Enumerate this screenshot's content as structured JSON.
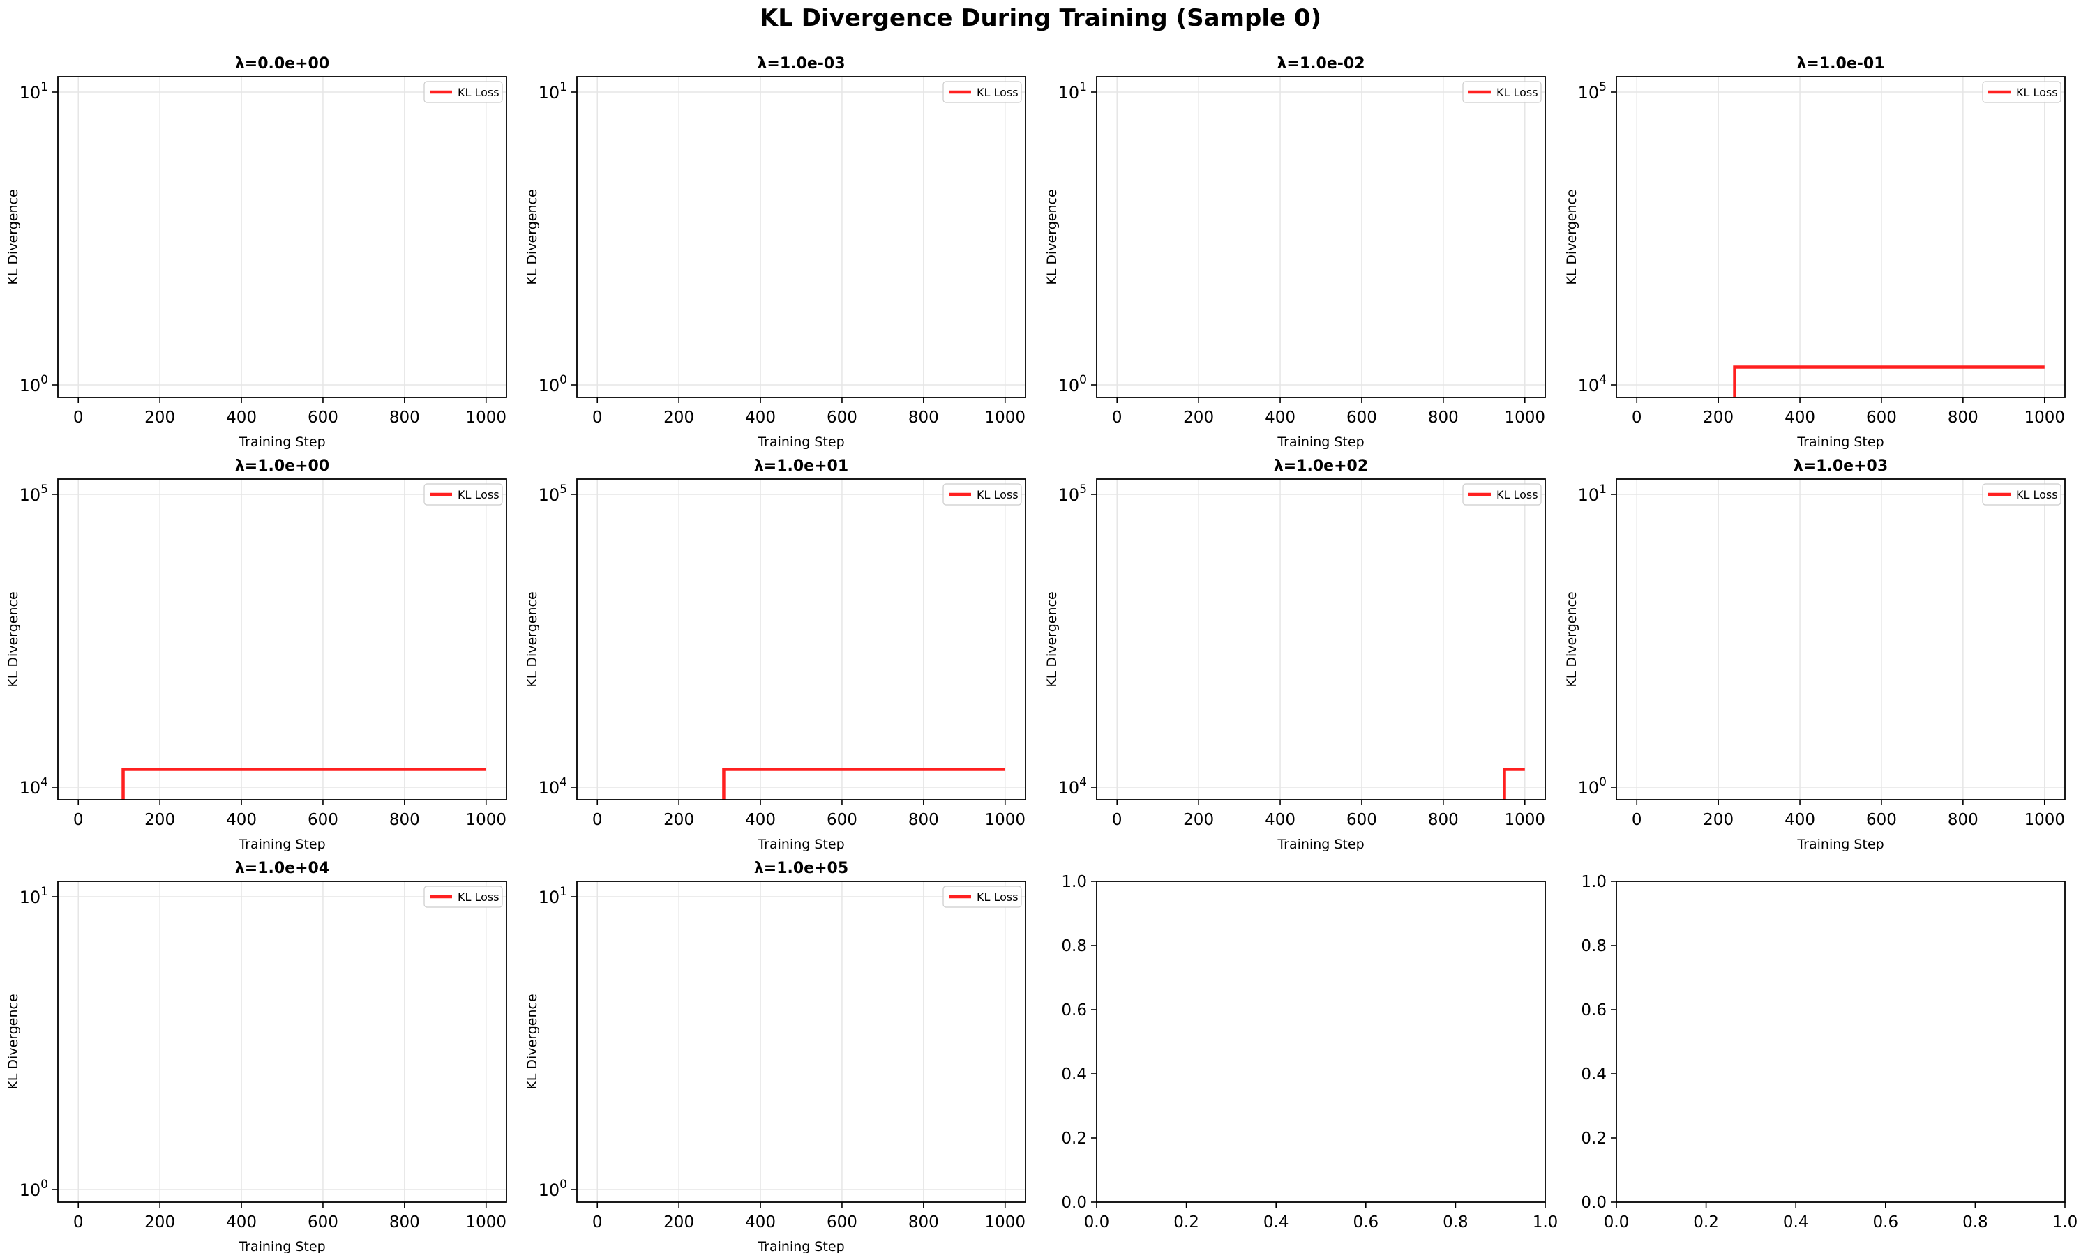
{
  "figure": {
    "title": "KL Divergence During Training (Sample 0)"
  },
  "colors": {
    "line": "#ff2020",
    "grid": "#e6e6e6",
    "axes": "#000000"
  },
  "chart_data": [
    {
      "type": "line",
      "title": "λ=0.0e+00",
      "xlabel": "Training Step",
      "ylabel": "KL Divergence",
      "x_ticks": [
        "0",
        "200",
        "400",
        "600",
        "800",
        "1000"
      ],
      "y_scale": "log",
      "y_ticks": [
        {
          "base": "10",
          "exp": "1"
        },
        {
          "base": "10",
          "exp": "0"
        }
      ],
      "xlim": [
        -50,
        1050
      ],
      "legend": {
        "label": "KL Loss",
        "position": "top-right"
      },
      "grid": true,
      "series": [
        {
          "name": "KL Loss",
          "x": [],
          "y": []
        }
      ]
    },
    {
      "type": "line",
      "title": "λ=1.0e-03",
      "xlabel": "Training Step",
      "ylabel": "KL Divergence",
      "x_ticks": [
        "0",
        "200",
        "400",
        "600",
        "800",
        "1000"
      ],
      "y_scale": "log",
      "y_ticks": [
        {
          "base": "10",
          "exp": "1"
        },
        {
          "base": "10",
          "exp": "0"
        }
      ],
      "xlim": [
        -50,
        1050
      ],
      "legend": {
        "label": "KL Loss",
        "position": "top-right"
      },
      "grid": true,
      "series": [
        {
          "name": "KL Loss",
          "x": [],
          "y": []
        }
      ]
    },
    {
      "type": "line",
      "title": "λ=1.0e-02",
      "xlabel": "Training Step",
      "ylabel": "KL Divergence",
      "x_ticks": [
        "0",
        "200",
        "400",
        "600",
        "800",
        "1000"
      ],
      "y_scale": "log",
      "y_ticks": [
        {
          "base": "10",
          "exp": "1"
        },
        {
          "base": "10",
          "exp": "0"
        }
      ],
      "xlim": [
        -50,
        1050
      ],
      "legend": {
        "label": "KL Loss",
        "position": "top-right"
      },
      "grid": true,
      "series": [
        {
          "name": "KL Loss",
          "x": [],
          "y": []
        }
      ]
    },
    {
      "type": "line",
      "title": "λ=1.0e-01",
      "xlabel": "Training Step",
      "ylabel": "KL Divergence",
      "x_ticks": [
        "0",
        "200",
        "400",
        "600",
        "800",
        "1000"
      ],
      "y_scale": "log",
      "y_ticks": [
        {
          "base": "10",
          "exp": "5"
        },
        {
          "base": "10",
          "exp": "4"
        }
      ],
      "xlim": [
        -50,
        1050
      ],
      "legend": {
        "label": "KL Loss",
        "position": "top-right"
      },
      "grid": true,
      "series": [
        {
          "name": "KL Loss",
          "x": [
            240,
            240,
            1000
          ],
          "y": [
            8000,
            11500,
            11500
          ]
        }
      ]
    },
    {
      "type": "line",
      "title": "λ=1.0e+00",
      "xlabel": "Training Step",
      "ylabel": "KL Divergence",
      "x_ticks": [
        "0",
        "200",
        "400",
        "600",
        "800",
        "1000"
      ],
      "y_scale": "log",
      "y_ticks": [
        {
          "base": "10",
          "exp": "5"
        },
        {
          "base": "10",
          "exp": "4"
        }
      ],
      "xlim": [
        -50,
        1050
      ],
      "legend": {
        "label": "KL Loss",
        "position": "top-right"
      },
      "grid": true,
      "series": [
        {
          "name": "KL Loss",
          "x": [
            110,
            110,
            1000
          ],
          "y": [
            8000,
            11500,
            11500
          ]
        }
      ]
    },
    {
      "type": "line",
      "title": "λ=1.0e+01",
      "xlabel": "Training Step",
      "ylabel": "KL Divergence",
      "x_ticks": [
        "0",
        "200",
        "400",
        "600",
        "800",
        "1000"
      ],
      "y_scale": "log",
      "y_ticks": [
        {
          "base": "10",
          "exp": "5"
        },
        {
          "base": "10",
          "exp": "4"
        }
      ],
      "xlim": [
        -50,
        1050
      ],
      "legend": {
        "label": "KL Loss",
        "position": "top-right"
      },
      "grid": true,
      "series": [
        {
          "name": "KL Loss",
          "x": [
            310,
            310,
            1000
          ],
          "y": [
            8000,
            11500,
            11500
          ]
        }
      ]
    },
    {
      "type": "line",
      "title": "λ=1.0e+02",
      "xlabel": "Training Step",
      "ylabel": "KL Divergence",
      "x_ticks": [
        "0",
        "200",
        "400",
        "600",
        "800",
        "1000"
      ],
      "y_scale": "log",
      "y_ticks": [
        {
          "base": "10",
          "exp": "5"
        },
        {
          "base": "10",
          "exp": "4"
        }
      ],
      "xlim": [
        -50,
        1050
      ],
      "legend": {
        "label": "KL Loss",
        "position": "top-right"
      },
      "grid": true,
      "series": [
        {
          "name": "KL Loss",
          "x": [
            950,
            950,
            1000
          ],
          "y": [
            8000,
            11500,
            11500
          ]
        }
      ]
    },
    {
      "type": "line",
      "title": "λ=1.0e+03",
      "xlabel": "Training Step",
      "ylabel": "KL Divergence",
      "x_ticks": [
        "0",
        "200",
        "400",
        "600",
        "800",
        "1000"
      ],
      "y_scale": "log",
      "y_ticks": [
        {
          "base": "10",
          "exp": "1"
        },
        {
          "base": "10",
          "exp": "0"
        }
      ],
      "xlim": [
        -50,
        1050
      ],
      "legend": {
        "label": "KL Loss",
        "position": "top-right"
      },
      "grid": true,
      "series": [
        {
          "name": "KL Loss",
          "x": [],
          "y": []
        }
      ]
    },
    {
      "type": "line",
      "title": "λ=1.0e+04",
      "xlabel": "Training Step",
      "ylabel": "KL Divergence",
      "x_ticks": [
        "0",
        "200",
        "400",
        "600",
        "800",
        "1000"
      ],
      "y_scale": "log",
      "y_ticks": [
        {
          "base": "10",
          "exp": "1"
        },
        {
          "base": "10",
          "exp": "0"
        }
      ],
      "xlim": [
        -50,
        1050
      ],
      "legend": {
        "label": "KL Loss",
        "position": "top-right"
      },
      "grid": true,
      "series": [
        {
          "name": "KL Loss",
          "x": [],
          "y": []
        }
      ]
    },
    {
      "type": "line",
      "title": "λ=1.0e+05",
      "xlabel": "Training Step",
      "ylabel": "KL Divergence",
      "x_ticks": [
        "0",
        "200",
        "400",
        "600",
        "800",
        "1000"
      ],
      "y_scale": "log",
      "y_ticks": [
        {
          "base": "10",
          "exp": "1"
        },
        {
          "base": "10",
          "exp": "0"
        }
      ],
      "xlim": [
        -50,
        1050
      ],
      "legend": {
        "label": "KL Loss",
        "position": "top-right"
      },
      "grid": true,
      "series": [
        {
          "name": "KL Loss",
          "x": [],
          "y": []
        }
      ]
    },
    {
      "type": "line",
      "title": "",
      "xlabel": "",
      "ylabel": "",
      "empty": true,
      "x_ticks": [
        "0.0",
        "0.2",
        "0.4",
        "0.6",
        "0.8",
        "1.0"
      ],
      "y_scale": "linear",
      "y_ticks_linear": [
        "0.0",
        "0.2",
        "0.4",
        "0.6",
        "0.8",
        "1.0"
      ],
      "xlim": [
        0,
        1
      ],
      "ylim": [
        0,
        1
      ],
      "grid": false,
      "series": []
    },
    {
      "type": "line",
      "title": "",
      "xlabel": "",
      "ylabel": "",
      "empty": true,
      "x_ticks": [
        "0.0",
        "0.2",
        "0.4",
        "0.6",
        "0.8",
        "1.0"
      ],
      "y_scale": "linear",
      "y_ticks_linear": [
        "0.0",
        "0.2",
        "0.4",
        "0.6",
        "0.8",
        "1.0"
      ],
      "xlim": [
        0,
        1
      ],
      "ylim": [
        0,
        1
      ],
      "grid": false,
      "series": []
    }
  ]
}
